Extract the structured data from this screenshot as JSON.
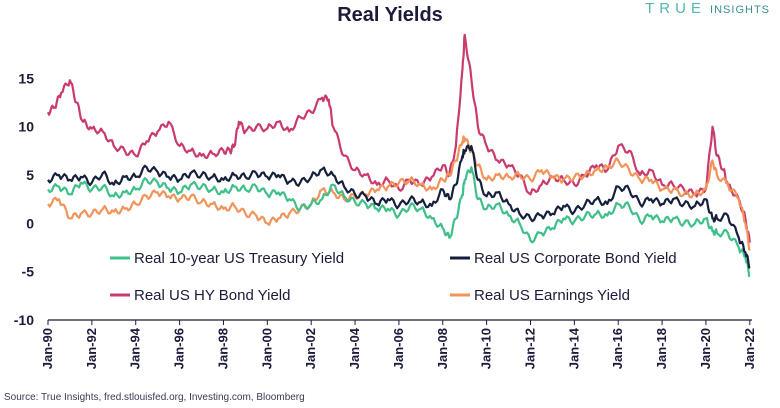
{
  "title": "Real Yields",
  "brand": {
    "prefix": "TRUE",
    "suffix": "INSIGHTS"
  },
  "source": "Source: True Insights, fred.stlouisfed.org, Investing.com, Bloomberg",
  "chart_data": {
    "type": "line",
    "title": "Real Yields",
    "xlabel": "",
    "ylabel": "",
    "xlim": [
      1990.0,
      2022.1
    ],
    "ylim": [
      -10,
      20
    ],
    "yticks": [
      15,
      10,
      5,
      0,
      -5,
      -10
    ],
    "xticks": [
      "Jan-90",
      "Jan-92",
      "Jan-94",
      "Jan-96",
      "Jan-98",
      "Jan-00",
      "Jan-02",
      "Jan-04",
      "Jan-06",
      "Jan-08",
      "Jan-10",
      "Jan-12",
      "Jan-14",
      "Jan-16",
      "Jan-18",
      "Jan-20",
      "Jan-22"
    ],
    "grid": false,
    "legend_position": "lower-center",
    "series": [
      {
        "name": "Real 10-year US Treasury Yield",
        "color": "#3fbf8a",
        "x": [
          1990.0,
          1990.5,
          1991.0,
          1991.5,
          1992.0,
          1992.5,
          1993.0,
          1993.5,
          1994.0,
          1994.5,
          1995.0,
          1995.5,
          1996.0,
          1996.5,
          1997.0,
          1997.5,
          1998.0,
          1998.5,
          1999.0,
          1999.5,
          2000.0,
          2000.5,
          2001.0,
          2001.5,
          2002.0,
          2002.5,
          2003.0,
          2003.5,
          2004.0,
          2004.5,
          2005.0,
          2005.5,
          2006.0,
          2006.5,
          2007.0,
          2007.5,
          2008.0,
          2008.3,
          2008.6,
          2008.9,
          2009.0,
          2009.3,
          2009.6,
          2010.0,
          2010.5,
          2011.0,
          2011.5,
          2012.0,
          2012.5,
          2013.0,
          2013.5,
          2014.0,
          2014.5,
          2015.0,
          2015.5,
          2016.0,
          2016.5,
          2017.0,
          2017.5,
          2018.0,
          2018.5,
          2019.0,
          2019.5,
          2020.0,
          2020.3,
          2020.5,
          2021.0,
          2021.5,
          2021.8,
          2022.0
        ],
        "y": [
          3.5,
          3.8,
          3.0,
          4.2,
          3.5,
          3.8,
          2.8,
          3.2,
          3.5,
          4.5,
          4.2,
          3.6,
          3.2,
          4.0,
          3.8,
          3.5,
          3.2,
          3.8,
          3.5,
          3.8,
          3.0,
          3.2,
          2.5,
          1.5,
          2.0,
          2.5,
          4.0,
          2.8,
          2.2,
          2.0,
          1.5,
          1.5,
          0.8,
          1.8,
          1.5,
          0.5,
          -0.5,
          -1.5,
          0.5,
          3.0,
          4.5,
          5.8,
          2.5,
          1.5,
          2.0,
          0.8,
          0.0,
          -1.8,
          -1.0,
          -0.5,
          0.5,
          0.2,
          0.8,
          1.0,
          0.8,
          2.0,
          1.8,
          0.2,
          0.8,
          0.2,
          0.5,
          0.0,
          0.0,
          0.5,
          -0.8,
          -1.0,
          -1.0,
          -2.5,
          -3.5,
          -5.5
        ]
      },
      {
        "name": "Real US Corporate Bond Yield",
        "color": "#16203e",
        "x": [
          1990.0,
          1990.5,
          1991.0,
          1991.5,
          1992.0,
          1992.5,
          1993.0,
          1993.5,
          1994.0,
          1994.5,
          1995.0,
          1995.5,
          1996.0,
          1996.5,
          1997.0,
          1997.5,
          1998.0,
          1998.5,
          1999.0,
          1999.5,
          2000.0,
          2000.5,
          2001.0,
          2001.5,
          2002.0,
          2002.5,
          2003.0,
          2003.5,
          2004.0,
          2004.5,
          2005.0,
          2005.5,
          2006.0,
          2006.5,
          2007.0,
          2007.5,
          2008.0,
          2008.3,
          2008.6,
          2008.9,
          2009.0,
          2009.3,
          2009.6,
          2010.0,
          2010.5,
          2011.0,
          2011.5,
          2012.0,
          2012.5,
          2013.0,
          2013.5,
          2014.0,
          2014.5,
          2015.0,
          2015.5,
          2016.0,
          2016.5,
          2017.0,
          2017.5,
          2018.0,
          2018.5,
          2019.0,
          2019.5,
          2020.0,
          2020.3,
          2020.5,
          2021.0,
          2021.5,
          2021.8,
          2022.0
        ],
        "y": [
          4.5,
          5.0,
          4.5,
          4.8,
          4.2,
          5.2,
          4.0,
          4.8,
          4.8,
          5.8,
          5.3,
          4.8,
          4.5,
          5.2,
          5.0,
          4.8,
          4.5,
          5.0,
          4.8,
          5.2,
          4.8,
          5.0,
          4.3,
          4.2,
          4.8,
          5.6,
          5.0,
          3.8,
          3.0,
          2.8,
          2.0,
          2.5,
          1.8,
          2.5,
          2.2,
          1.8,
          3.5,
          2.5,
          4.0,
          7.0,
          7.5,
          8.0,
          4.5,
          2.8,
          3.2,
          2.0,
          1.0,
          0.5,
          0.8,
          1.0,
          1.8,
          1.2,
          2.0,
          2.5,
          2.0,
          3.8,
          3.5,
          2.0,
          2.5,
          2.0,
          2.5,
          2.0,
          1.8,
          2.5,
          0.5,
          0.5,
          0.8,
          -1.5,
          -3.0,
          -4.5
        ]
      },
      {
        "name": "Real US HY Bond Yield",
        "color": "#c93a6e",
        "x": [
          1990.0,
          1990.3,
          1990.6,
          1991.0,
          1991.3,
          1991.6,
          1992.0,
          1992.5,
          1993.0,
          1993.5,
          1994.0,
          1994.5,
          1995.0,
          1995.5,
          1996.0,
          1996.5,
          1997.0,
          1997.5,
          1998.0,
          1998.3,
          1998.5,
          1998.7,
          1999.0,
          1999.5,
          2000.0,
          2000.5,
          2001.0,
          2001.5,
          2002.0,
          2002.5,
          2002.8,
          2003.0,
          2003.5,
          2004.0,
          2004.5,
          2005.0,
          2005.5,
          2006.0,
          2006.5,
          2007.0,
          2007.5,
          2008.0,
          2008.3,
          2008.6,
          2008.9,
          2009.0,
          2009.3,
          2009.6,
          2010.0,
          2010.5,
          2011.0,
          2011.5,
          2012.0,
          2012.5,
          2013.0,
          2013.5,
          2014.0,
          2014.5,
          2015.0,
          2015.5,
          2016.0,
          2016.5,
          2017.0,
          2017.5,
          2018.0,
          2018.5,
          2019.0,
          2019.5,
          2020.0,
          2020.3,
          2020.5,
          2020.8,
          2021.0,
          2021.5,
          2021.8,
          2022.0
        ],
        "y": [
          11.5,
          12.0,
          13.5,
          14.8,
          12.5,
          10.5,
          9.8,
          9.5,
          8.0,
          7.5,
          7.0,
          8.5,
          9.5,
          10.5,
          8.0,
          7.5,
          7.0,
          7.2,
          7.5,
          7.5,
          8.0,
          10.5,
          9.5,
          10.0,
          9.8,
          10.5,
          9.5,
          11.0,
          11.5,
          13.0,
          12.8,
          10.0,
          7.0,
          5.5,
          5.0,
          4.0,
          4.5,
          3.5,
          4.5,
          4.0,
          4.8,
          6.0,
          5.0,
          8.0,
          16.0,
          19.5,
          15.0,
          10.0,
          8.0,
          6.5,
          6.0,
          5.0,
          3.0,
          4.0,
          4.8,
          4.5,
          4.0,
          5.0,
          6.0,
          5.5,
          8.0,
          7.5,
          5.0,
          5.5,
          4.0,
          4.0,
          3.5,
          3.0,
          3.5,
          10.0,
          7.0,
          5.5,
          4.0,
          2.5,
          0.5,
          -2.0
        ]
      },
      {
        "name": "Real US Earnings Yield",
        "color": "#f0945a",
        "x": [
          1990.0,
          1990.5,
          1991.0,
          1991.5,
          1992.0,
          1992.5,
          1993.0,
          1993.5,
          1994.0,
          1994.5,
          1995.0,
          1995.5,
          1996.0,
          1996.5,
          1997.0,
          1997.5,
          1998.0,
          1998.5,
          1999.0,
          1999.5,
          2000.0,
          2000.5,
          2001.0,
          2001.5,
          2002.0,
          2002.5,
          2003.0,
          2003.5,
          2004.0,
          2004.5,
          2005.0,
          2005.5,
          2006.0,
          2006.5,
          2007.0,
          2007.5,
          2008.0,
          2008.3,
          2008.6,
          2008.9,
          2009.0,
          2009.3,
          2009.6,
          2010.0,
          2010.5,
          2011.0,
          2011.5,
          2012.0,
          2012.5,
          2013.0,
          2013.5,
          2014.0,
          2014.5,
          2015.0,
          2015.5,
          2016.0,
          2016.5,
          2017.0,
          2017.5,
          2018.0,
          2018.5,
          2019.0,
          2019.5,
          2020.0,
          2020.3,
          2020.5,
          2021.0,
          2021.5,
          2021.8,
          2022.0
        ],
        "y": [
          2.0,
          2.5,
          0.5,
          1.0,
          1.0,
          1.5,
          1.2,
          1.5,
          2.0,
          2.8,
          3.2,
          2.8,
          2.5,
          2.8,
          2.2,
          2.0,
          1.5,
          1.8,
          1.0,
          0.8,
          0.0,
          0.5,
          1.0,
          1.5,
          2.0,
          3.5,
          3.2,
          2.5,
          2.8,
          3.0,
          3.5,
          3.8,
          4.2,
          4.5,
          4.0,
          3.5,
          4.5,
          5.0,
          6.5,
          8.5,
          8.8,
          7.5,
          6.0,
          4.5,
          5.0,
          4.8,
          5.0,
          4.5,
          5.5,
          4.8,
          4.5,
          4.8,
          5.0,
          5.5,
          5.8,
          6.5,
          5.5,
          4.5,
          4.5,
          3.5,
          3.5,
          3.0,
          3.0,
          3.5,
          6.5,
          5.0,
          4.0,
          2.5,
          0.0,
          -2.8
        ]
      }
    ]
  }
}
